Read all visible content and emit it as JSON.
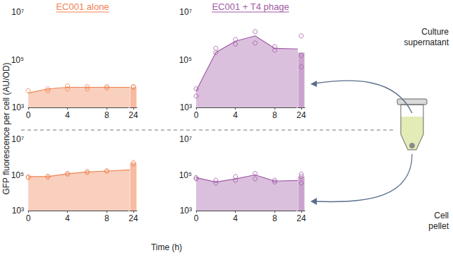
{
  "chart_data": {
    "type": "line",
    "log": "y",
    "grid": false,
    "marker": "circle",
    "xlabel": "Time (h)",
    "ylabel": "GFP fluorescence per cell (AU/OD)",
    "xlim": [
      0,
      24.5
    ],
    "xticks": [
      0,
      4,
      8,
      24
    ],
    "ylim": [
      1000,
      10000000
    ],
    "yticks": [
      {
        "value": 1000,
        "label": "10³"
      },
      {
        "value": 100000,
        "label": "10⁵"
      },
      {
        "value": 10000000,
        "label": "10⁷"
      }
    ],
    "columns": [
      {
        "title": "EC001 alone",
        "color": "#ef8354"
      },
      {
        "title": "EC001 + T4 phage",
        "color": "#a05aa6"
      }
    ],
    "rows": [
      {
        "label": "Culture supernatant",
        "panels": [
          {
            "x": [
              0,
              2,
              4,
              6,
              8,
              24
            ],
            "values": [
              4000,
              6000,
              7000,
              7000,
              7000,
              7000
            ],
            "replicates": [
              [
                5000
              ],
              [
                5000,
                6000
              ],
              [
                6000,
                8000
              ],
              [
                6000,
                7500
              ],
              [
                6500,
                7500
              ],
              [
                7000,
                7500
              ]
            ]
          },
          {
            "x": [
              0,
              2,
              4,
              6,
              8,
              24
            ],
            "values": [
              5000,
              200000,
              600000,
              1000000,
              300000,
              200000
            ],
            "replicates": [
              [
                6000,
                3000
              ],
              [
                300000,
                200000
              ],
              [
                450000,
                700000
              ],
              [
                1500000,
                500000
              ],
              [
                350000,
                250000
              ],
              [
                1000000,
                150000,
                50000
              ]
            ]
          }
        ]
      },
      {
        "label": "Cell pellet",
        "panels": [
          {
            "x": [
              0,
              2,
              4,
              6,
              8,
              24
            ],
            "values": [
              80000,
              80000,
              115000,
              145000,
              165000,
              450000
            ],
            "replicates": [
              [
                70000,
                80000
              ],
              [
                75000,
                85000
              ],
              [
                110000,
                120000
              ],
              [
                140000,
                150000
              ],
              [
                160000,
                170000
              ],
              [
                400000,
                500000
              ]
            ]
          },
          {
            "x": [
              0,
              2,
              4,
              6,
              8,
              24
            ],
            "values": [
              70000,
              40000,
              60000,
              100000,
              45000,
              80000
            ],
            "replicates": [
              [
                60000,
                70000
              ],
              [
                35000,
                50000
              ],
              [
                50000,
                80000
              ],
              [
                120000,
                60000
              ],
              [
                40000,
                50000
              ],
              [
                110000,
                80000,
                35000
              ]
            ]
          }
        ]
      }
    ]
  }
}
